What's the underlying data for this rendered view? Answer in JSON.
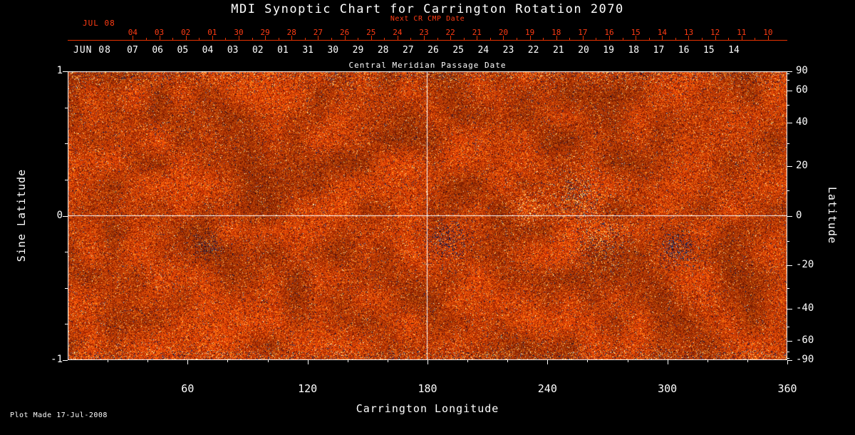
{
  "title": "MDI Synoptic Chart for Carrington Rotation 2070",
  "footer": "Plot Made 17-Jul-2008",
  "top_axis": {
    "next_cr_label": "Next CR CMP Date",
    "red_month_label": "JUL 08",
    "red_ticks": [
      "04",
      "03",
      "02",
      "01",
      "30",
      "29",
      "28",
      "27",
      "26",
      "25",
      "24",
      "23",
      "22",
      "21",
      "20",
      "19",
      "18",
      "17",
      "16",
      "15",
      "14",
      "13",
      "12",
      "11",
      "10"
    ],
    "white_month_label": "JUN 08",
    "white_ticks": [
      "07",
      "06",
      "05",
      "04",
      "03",
      "02",
      "01",
      "31",
      "30",
      "29",
      "28",
      "27",
      "26",
      "25",
      "24",
      "23",
      "22",
      "21",
      "20",
      "19",
      "18",
      "17",
      "16",
      "15",
      "14"
    ],
    "axis_caption": "Central Meridian Passage Date"
  },
  "left_axis": {
    "label": "Sine Latitude",
    "ticks": [
      {
        "v": 1,
        "t": "1"
      },
      {
        "v": 0,
        "t": "0"
      },
      {
        "v": -1,
        "t": "-1"
      }
    ]
  },
  "right_axis": {
    "label": "Latitude",
    "ticks": [
      90,
      60,
      40,
      20,
      0,
      -20,
      -40,
      -60,
      -90
    ]
  },
  "bottom_axis": {
    "label": "Carrington Longitude",
    "ticks": [
      60,
      120,
      180,
      240,
      300,
      360
    ]
  },
  "colors": {
    "background": "#000000",
    "red_text": "#ff3c14",
    "red_axis": "#e63200",
    "white": "#ffffff"
  },
  "chart_data": {
    "type": "heatmap",
    "title": "MDI Synoptic Chart for Carrington Rotation 2070",
    "xlabel": "Carrington Longitude",
    "ylabel": "Sine Latitude",
    "ylabel_right": "Latitude",
    "xlim": [
      0,
      360
    ],
    "ylim": [
      -1,
      1
    ],
    "x_ticks": [
      60,
      120,
      180,
      240,
      300,
      360
    ],
    "y_ticks_sine": [
      1,
      0,
      -1
    ],
    "y_ticks_latitude": [
      90,
      60,
      40,
      20,
      0,
      -20,
      -40,
      -60,
      -90
    ],
    "reference_lines": {
      "longitude": 180,
      "sine_latitude": 0
    },
    "cmp_date_scale_current": {
      "month": "JUN 08",
      "days": [
        "07",
        "06",
        "05",
        "04",
        "03",
        "02",
        "01",
        "31",
        "30",
        "29",
        "28",
        "27",
        "26",
        "25",
        "24",
        "23",
        "22",
        "21",
        "20",
        "19",
        "18",
        "17",
        "16",
        "15",
        "14"
      ]
    },
    "cmp_date_scale_next": {
      "month": "JUL 08",
      "days": [
        "04",
        "03",
        "02",
        "01",
        "30",
        "29",
        "28",
        "27",
        "26",
        "25",
        "24",
        "23",
        "22",
        "21",
        "20",
        "19",
        "18",
        "17",
        "16",
        "15",
        "14",
        "13",
        "12",
        "11",
        "10"
      ]
    },
    "description": "SOHO/MDI solar magnetic field synoptic map: salt-and-pepper quiet-Sun field rendered in red/orange, bright yellow-white positive-polarity patches and dark blue-black negative-polarity patches clustered in active-region belts; white reference lines at longitude 180 and sine latitude 0",
    "noise": {
      "seed": 20700,
      "extreme_fraction": 0.045,
      "palette": {
        "quiet_low": "#961e00",
        "quiet_high": "#f05a0a",
        "dark_red": "#5a1404",
        "bright_orange": "#ff961e",
        "positive_low": "#ffb428",
        "positive_high": "#ffffd2",
        "negative_dark": "#000028",
        "negative_blue": "#3c64aa",
        "crosshair": "#ffffff"
      },
      "active_regions": [
        {
          "lon": 255,
          "sine_lat": 0.13,
          "r": 40,
          "strength": 5,
          "polarity": "mixed"
        },
        {
          "lon": 230,
          "sine_lat": 0.05,
          "r": 30,
          "strength": 3,
          "polarity": "positive"
        },
        {
          "lon": 190,
          "sine_lat": -0.17,
          "r": 30,
          "strength": 6,
          "polarity": "negative"
        },
        {
          "lon": 267,
          "sine_lat": -0.2,
          "r": 45,
          "strength": 4,
          "polarity": "mixed"
        },
        {
          "lon": 305,
          "sine_lat": -0.22,
          "r": 28,
          "strength": 7,
          "polarity": "negative"
        },
        {
          "lon": 70,
          "sine_lat": -0.2,
          "r": 22,
          "strength": 4,
          "polarity": "negative"
        }
      ]
    }
  }
}
